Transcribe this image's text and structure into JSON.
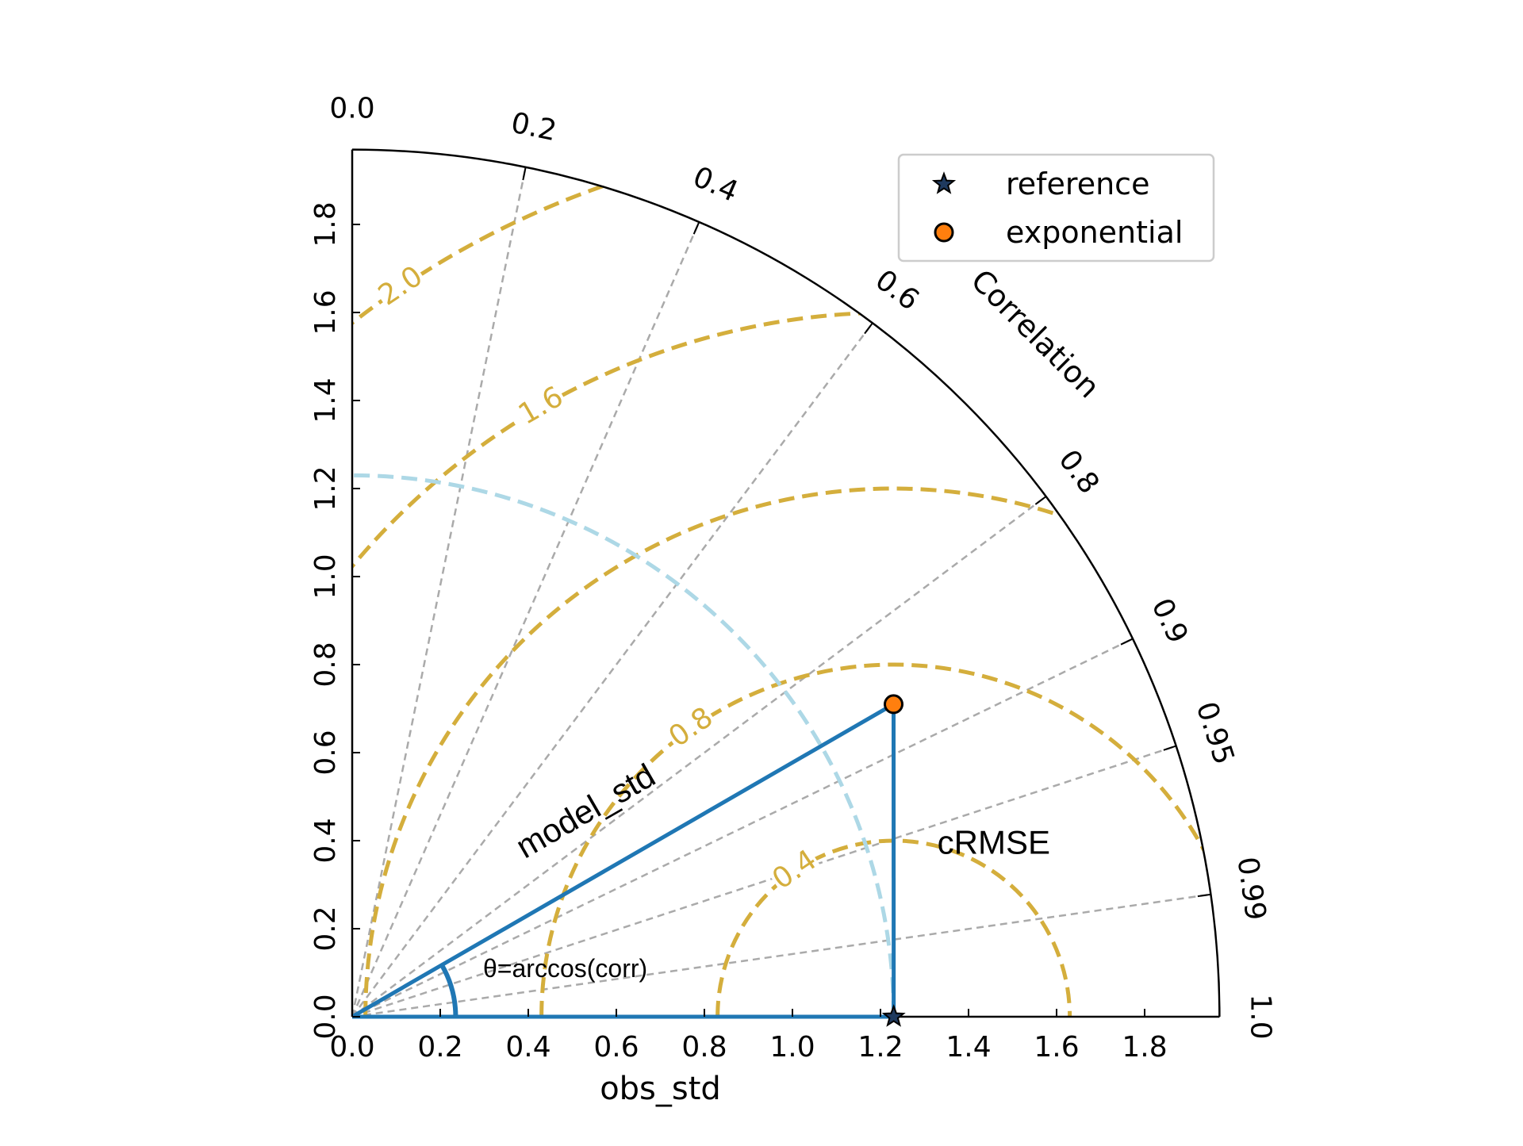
{
  "chart_data": {
    "type": "scatter",
    "title": "",
    "xlabel": "obs_std",
    "corr_axis_label": "Correlation",
    "std_ticks": [
      "0.0",
      "0.2",
      "0.4",
      "0.6",
      "0.8",
      "1.0",
      "1.2",
      "1.4",
      "1.6",
      "1.8"
    ],
    "std_tick_values": [
      0.0,
      0.2,
      0.4,
      0.6,
      0.8,
      1.0,
      1.2,
      1.4,
      1.6,
      1.8
    ],
    "std_max": 1.97,
    "corr_tick_labels": [
      "0.0",
      "0.2",
      "0.4",
      "0.6",
      "0.8",
      "0.9",
      "0.95",
      "0.99",
      "1.0"
    ],
    "corr_tick_values": [
      0.0,
      0.2,
      0.4,
      0.6,
      0.8,
      0.9,
      0.95,
      0.99,
      1.0
    ],
    "corr_grid_values": [
      0.2,
      0.4,
      0.6,
      0.8,
      0.9,
      0.95,
      0.99
    ],
    "crmse_contours": [
      0.4,
      0.8,
      1.2,
      1.6,
      2.0
    ],
    "crmse_contour_labels": [
      "0.4",
      "0.8",
      "1.6",
      "2.0"
    ],
    "crmse_contour_label_values": [
      0.4,
      0.8,
      1.6,
      2.0
    ],
    "ref_std": 1.23,
    "series": [
      {
        "name": "reference",
        "std": 1.23,
        "corr": 1.0,
        "marker": "star",
        "color": "#1f3a5f"
      },
      {
        "name": "exponential",
        "std": 1.42,
        "corr": 0.866,
        "marker": "circle",
        "color": "#ff7f0e"
      }
    ],
    "annotations": {
      "model_std": "model_std",
      "crmse": "cRMSE",
      "theta": "θ=arccos(corr)"
    },
    "colors": {
      "frame": "#000000",
      "corr_grid": "#aaaaaa",
      "crmse_contour": "#d4ae3c",
      "ref_std_arc": "#add8e6",
      "construction": "#1f77b4"
    },
    "legend_position": "top-right",
    "grid": true
  }
}
